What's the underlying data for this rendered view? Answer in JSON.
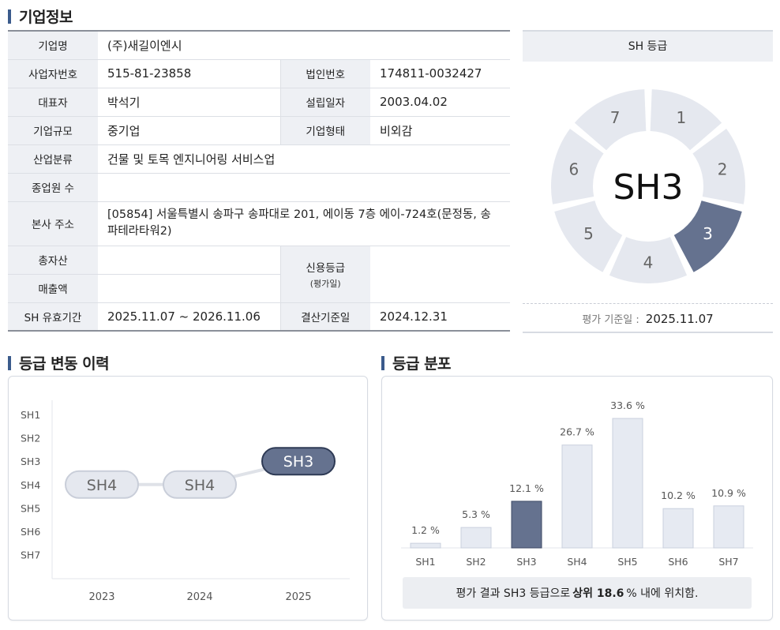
{
  "company_section": {
    "title": "기업정보",
    "name_label": "기업명",
    "name_value": "(주)새길이엔시",
    "bizno_label": "사업자번호",
    "bizno_value": "515-81-23858",
    "corpno_label": "법인번호",
    "corpno_value": "174811-0032427",
    "ceo_label": "대표자",
    "ceo_value": "박석기",
    "founded_label": "설립일자",
    "founded_value": "2003.04.02",
    "size_label": "기업규모",
    "size_value": "중기업",
    "type_label": "기업형태",
    "type_value": "비외감",
    "industry_label": "산업분류",
    "industry_value": "건물 및 토목 엔지니어링 서비스업",
    "employees_label": "종업원 수",
    "employees_value": "",
    "address_label": "본사 주소",
    "address_value": "[05854] 서울특별시 송파구 송파대로 201, 에이동 7층 에이-724호(문정동, 송파테라타워2)",
    "assets_label": "총자산",
    "assets_value": "",
    "sales_label": "매출액",
    "sales_value": "",
    "credit_label": "신용등급",
    "credit_note": "(평가일)",
    "credit_value": "",
    "validity_label": "SH 유효기간",
    "validity_value": "2025.11.07 ~ 2026.11.06",
    "settlement_label": "결산기준일",
    "settlement_value": "2024.12.31"
  },
  "grade_panel": {
    "title": "SH 등급",
    "current_grade": "SH3",
    "highlight_segment": 3,
    "segments": [
      "1",
      "2",
      "3",
      "4",
      "5",
      "6",
      "7"
    ],
    "eval_date_label": "평가 기준일 :",
    "eval_date": "2025.11.07",
    "colors": {
      "segment": "#e5e8ef",
      "highlight": "#65728f",
      "label": "#666666",
      "highlight_label": "#ffffff"
    }
  },
  "history_section": {
    "title": "등급 변동 이력",
    "y_levels": [
      "SH1",
      "SH2",
      "SH3",
      "SH4",
      "SH5",
      "SH6",
      "SH7"
    ],
    "years": [
      "2023",
      "2024",
      "2025"
    ],
    "grades": [
      "SH4",
      "SH4",
      "SH3"
    ]
  },
  "distribution_section": {
    "title": "등급 분포",
    "summary_prefix": "평가 결과 SH3 등급으로",
    "summary_bold": "상위 18.6",
    "summary_suffix": "% 내에 위치함."
  },
  "chart_data": [
    {
      "type": "line",
      "categories": [
        "2023",
        "2024",
        "2025"
      ],
      "y_categories": [
        "SH1",
        "SH2",
        "SH3",
        "SH4",
        "SH5",
        "SH6",
        "SH7"
      ],
      "series": [
        {
          "values": [
            "SH4",
            "SH4",
            "SH3"
          ]
        }
      ],
      "highlight_point": "2025"
    },
    {
      "type": "bar",
      "categories": [
        "SH1",
        "SH2",
        "SH3",
        "SH4",
        "SH5",
        "SH6",
        "SH7"
      ],
      "values": [
        1.2,
        5.3,
        12.1,
        26.7,
        33.6,
        10.2,
        10.9
      ],
      "value_labels": [
        "1.2 %",
        "5.3 %",
        "12.1 %",
        "26.7 %",
        "33.6 %",
        "10.2 %",
        "10.9 %"
      ],
      "highlight_category": "SH3",
      "colors": {
        "bar": "#e6eaf2",
        "bar_border": "#c9d0de",
        "highlight": "#65728f"
      }
    }
  ]
}
